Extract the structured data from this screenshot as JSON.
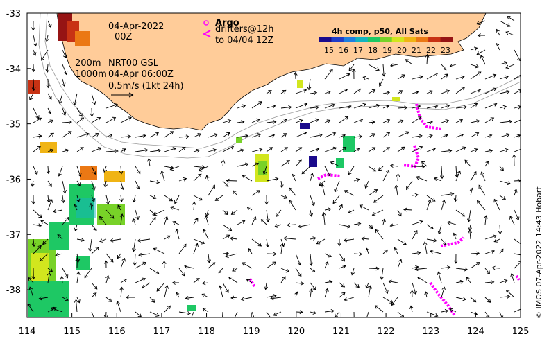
{
  "map": {
    "x_ticks": [
      "114",
      "115",
      "116",
      "117",
      "118",
      "119",
      "120",
      "121",
      "122",
      "123",
      "124",
      "125"
    ],
    "y_ticks": [
      "-33",
      "-34",
      "-35",
      "-36",
      "-37",
      "-38"
    ],
    "lon_range": [
      114,
      125
    ],
    "lat_range": [
      -38.5,
      -33
    ]
  },
  "annotations": {
    "date": "04-Apr-2022",
    "time": "00Z",
    "depth_200": "200m",
    "depth_1000": "1000m",
    "product": "NRT00 GSL",
    "product_time": "04-Apr 06:00Z",
    "scale_label": "0.5m/s (1kt 24h)"
  },
  "legend": {
    "argo_label": "Argo",
    "drifters_label": "drifters@12h",
    "drifters_to": "to 04/04 12Z",
    "argo_color": "#ff00ff",
    "drifter_color": "#ff00ff"
  },
  "colorbar": {
    "title": "4h comp, p50, All Sats",
    "ticks": [
      "15",
      "16",
      "17",
      "18",
      "19",
      "20",
      "21",
      "22",
      "23"
    ],
    "colors": [
      "#1a0a8c",
      "#1f3cc8",
      "#1e7fe0",
      "#14b4c0",
      "#1ec864",
      "#78d228",
      "#d2e61e",
      "#f0b414",
      "#eb7814",
      "#c83214",
      "#961414"
    ]
  },
  "credit": "© IMOS 07-Apr-2022 14:43 Hobart",
  "colors": {
    "land": "#ffcc99",
    "frame": "#000000"
  }
}
